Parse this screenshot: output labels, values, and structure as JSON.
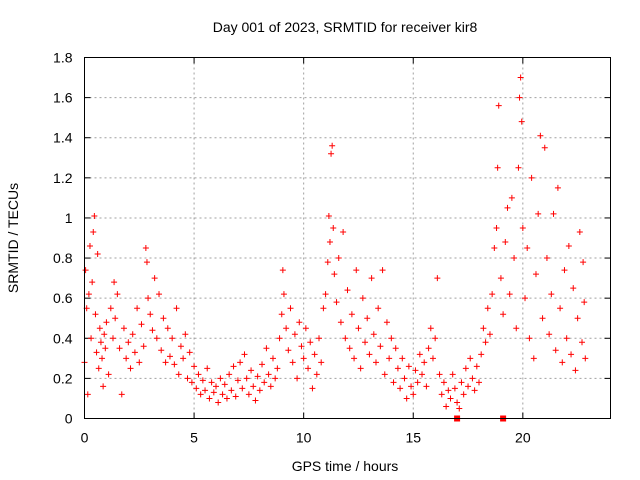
{
  "chart_data": {
    "type": "scatter",
    "title": "Day 001 of 2023, SRMTID for receiver kir8",
    "xlabel": "GPS time / hours",
    "ylabel": "SRMTID / TECUs",
    "xlim": [
      0,
      24
    ],
    "ylim": [
      0,
      1.8
    ],
    "xticks": [
      0,
      5,
      10,
      15,
      20
    ],
    "yticks": [
      0,
      0.2,
      0.4,
      0.6,
      0.8,
      1,
      1.2,
      1.4,
      1.6,
      1.8
    ],
    "xtick_labels": [
      "0",
      "5",
      "10",
      "15",
      "20"
    ],
    "ytick_labels": [
      "0",
      "0.2",
      "0.4",
      "0.6",
      "0.8",
      "1",
      "1.2",
      "1.4",
      "1.6",
      "1.8"
    ],
    "grid": true,
    "marker": "+",
    "color": "#ff0000",
    "series": [
      {
        "name": "SRMTID",
        "points": [
          [
            0.0,
            0.28
          ],
          [
            0.05,
            0.74
          ],
          [
            0.1,
            0.55
          ],
          [
            0.15,
            0.12
          ],
          [
            0.2,
            0.62
          ],
          [
            0.25,
            0.86
          ],
          [
            0.3,
            0.4
          ],
          [
            0.35,
            0.68
          ],
          [
            0.4,
            0.93
          ],
          [
            0.45,
            1.01
          ],
          [
            0.5,
            0.52
          ],
          [
            0.55,
            0.33
          ],
          [
            0.6,
            0.82
          ],
          [
            0.65,
            0.25
          ],
          [
            0.7,
            0.45
          ],
          [
            0.75,
            0.38
          ],
          [
            0.8,
            0.3
          ],
          [
            0.85,
            0.16
          ],
          [
            0.9,
            0.42
          ],
          [
            0.95,
            0.35
          ],
          [
            1.0,
            0.48
          ],
          [
            1.1,
            0.22
          ],
          [
            1.2,
            0.55
          ],
          [
            1.3,
            0.4
          ],
          [
            1.35,
            0.68
          ],
          [
            1.4,
            0.5
          ],
          [
            1.5,
            0.62
          ],
          [
            1.6,
            0.35
          ],
          [
            1.7,
            0.12
          ],
          [
            1.8,
            0.45
          ],
          [
            1.9,
            0.3
          ],
          [
            2.0,
            0.38
          ],
          [
            2.1,
            0.25
          ],
          [
            2.2,
            0.42
          ],
          [
            2.3,
            0.33
          ],
          [
            2.4,
            0.55
          ],
          [
            2.5,
            0.28
          ],
          [
            2.6,
            0.47
          ],
          [
            2.7,
            0.36
          ],
          [
            2.8,
            0.85
          ],
          [
            2.85,
            0.78
          ],
          [
            2.9,
            0.6
          ],
          [
            3.0,
            0.52
          ],
          [
            3.1,
            0.44
          ],
          [
            3.2,
            0.7
          ],
          [
            3.3,
            0.4
          ],
          [
            3.4,
            0.62
          ],
          [
            3.5,
            0.34
          ],
          [
            3.6,
            0.5
          ],
          [
            3.7,
            0.28
          ],
          [
            3.8,
            0.45
          ],
          [
            3.9,
            0.31
          ],
          [
            4.0,
            0.4
          ],
          [
            4.1,
            0.27
          ],
          [
            4.2,
            0.55
          ],
          [
            4.3,
            0.22
          ],
          [
            4.4,
            0.36
          ],
          [
            4.5,
            0.3
          ],
          [
            4.6,
            0.42
          ],
          [
            4.7,
            0.2
          ],
          [
            4.8,
            0.33
          ],
          [
            4.9,
            0.18
          ],
          [
            5.0,
            0.26
          ],
          [
            5.1,
            0.15
          ],
          [
            5.2,
            0.22
          ],
          [
            5.3,
            0.12
          ],
          [
            5.4,
            0.19
          ],
          [
            5.5,
            0.14
          ],
          [
            5.6,
            0.25
          ],
          [
            5.7,
            0.1
          ],
          [
            5.8,
            0.18
          ],
          [
            5.9,
            0.13
          ],
          [
            6.0,
            0.16
          ],
          [
            6.1,
            0.08
          ],
          [
            6.2,
            0.2
          ],
          [
            6.3,
            0.12
          ],
          [
            6.4,
            0.17
          ],
          [
            6.5,
            0.1
          ],
          [
            6.6,
            0.22
          ],
          [
            6.7,
            0.14
          ],
          [
            6.8,
            0.26
          ],
          [
            6.9,
            0.11
          ],
          [
            7.0,
            0.19
          ],
          [
            7.1,
            0.28
          ],
          [
            7.2,
            0.15
          ],
          [
            7.3,
            0.32
          ],
          [
            7.4,
            0.2
          ],
          [
            7.5,
            0.12
          ],
          [
            7.6,
            0.24
          ],
          [
            7.7,
            0.16
          ],
          [
            7.8,
            0.09
          ],
          [
            7.9,
            0.21
          ],
          [
            8.0,
            0.14
          ],
          [
            8.1,
            0.27
          ],
          [
            8.2,
            0.18
          ],
          [
            8.3,
            0.35
          ],
          [
            8.4,
            0.22
          ],
          [
            8.5,
            0.16
          ],
          [
            8.6,
            0.3
          ],
          [
            8.7,
            0.2
          ],
          [
            8.8,
            0.25
          ],
          [
            8.9,
            0.4
          ],
          [
            9.0,
            0.52
          ],
          [
            9.05,
            0.74
          ],
          [
            9.1,
            0.62
          ],
          [
            9.2,
            0.45
          ],
          [
            9.3,
            0.34
          ],
          [
            9.4,
            0.55
          ],
          [
            9.5,
            0.28
          ],
          [
            9.6,
            0.42
          ],
          [
            9.7,
            0.2
          ],
          [
            9.8,
            0.48
          ],
          [
            9.9,
            0.36
          ],
          [
            10.0,
            0.3
          ],
          [
            10.1,
            0.45
          ],
          [
            10.2,
            0.25
          ],
          [
            10.3,
            0.38
          ],
          [
            10.4,
            0.15
          ],
          [
            10.5,
            0.32
          ],
          [
            10.6,
            0.22
          ],
          [
            10.7,
            0.4
          ],
          [
            10.8,
            0.28
          ],
          [
            10.9,
            0.55
          ],
          [
            11.0,
            0.62
          ],
          [
            11.1,
            0.78
          ],
          [
            11.15,
            1.01
          ],
          [
            11.2,
            0.88
          ],
          [
            11.25,
            1.32
          ],
          [
            11.3,
            1.36
          ],
          [
            11.35,
            0.95
          ],
          [
            11.4,
            0.72
          ],
          [
            11.5,
            0.58
          ],
          [
            11.6,
            0.8
          ],
          [
            11.7,
            0.48
          ],
          [
            11.8,
            0.93
          ],
          [
            11.9,
            0.4
          ],
          [
            12.0,
            0.64
          ],
          [
            12.1,
            0.35
          ],
          [
            12.2,
            0.52
          ],
          [
            12.3,
            0.3
          ],
          [
            12.4,
            0.74
          ],
          [
            12.5,
            0.45
          ],
          [
            12.6,
            0.25
          ],
          [
            12.7,
            0.6
          ],
          [
            12.8,
            0.38
          ],
          [
            12.9,
            0.5
          ],
          [
            13.0,
            0.32
          ],
          [
            13.1,
            0.7
          ],
          [
            13.2,
            0.42
          ],
          [
            13.3,
            0.28
          ],
          [
            13.4,
            0.55
          ],
          [
            13.5,
            0.36
          ],
          [
            13.6,
            0.74
          ],
          [
            13.7,
            0.22
          ],
          [
            13.8,
            0.48
          ],
          [
            13.9,
            0.3
          ],
          [
            14.0,
            0.4
          ],
          [
            14.1,
            0.18
          ],
          [
            14.2,
            0.35
          ],
          [
            14.3,
            0.25
          ],
          [
            14.4,
            0.15
          ],
          [
            14.5,
            0.3
          ],
          [
            14.6,
            0.2
          ],
          [
            14.7,
            0.1
          ],
          [
            14.8,
            0.26
          ],
          [
            14.9,
            0.16
          ],
          [
            15.0,
            0.12
          ],
          [
            15.1,
            0.24
          ],
          [
            15.2,
            0.18
          ],
          [
            15.3,
            0.32
          ],
          [
            15.4,
            0.22
          ],
          [
            15.5,
            0.28
          ],
          [
            15.6,
            0.16
          ],
          [
            15.7,
            0.35
          ],
          [
            15.8,
            0.45
          ],
          [
            15.9,
            0.3
          ],
          [
            16.0,
            0.4
          ],
          [
            16.1,
            0.7
          ],
          [
            16.2,
            0.22
          ],
          [
            16.3,
            0.12
          ],
          [
            16.4,
            0.18
          ],
          [
            16.5,
            0.06
          ],
          [
            16.6,
            0.14
          ],
          [
            16.7,
            0.1
          ],
          [
            16.8,
            0.22
          ],
          [
            16.9,
            0.15
          ],
          [
            17.0,
            0.08
          ],
          [
            17.1,
            0.05
          ],
          [
            17.2,
            0.18
          ],
          [
            17.3,
            0.12
          ],
          [
            17.4,
            0.25
          ],
          [
            17.5,
            0.16
          ],
          [
            17.6,
            0.3
          ],
          [
            17.7,
            0.2
          ],
          [
            17.8,
            0.14
          ],
          [
            17.9,
            0.26
          ],
          [
            18.0,
            0.18
          ],
          [
            18.1,
            0.32
          ],
          [
            18.2,
            0.45
          ],
          [
            18.3,
            0.38
          ],
          [
            18.4,
            0.55
          ],
          [
            18.5,
            0.42
          ],
          [
            18.6,
            0.62
          ],
          [
            18.7,
            0.85
          ],
          [
            18.8,
            0.95
          ],
          [
            18.85,
            1.25
          ],
          [
            18.9,
            1.56
          ],
          [
            19.0,
            0.7
          ],
          [
            19.1,
            0.52
          ],
          [
            19.2,
            0.88
          ],
          [
            19.3,
            1.05
          ],
          [
            19.4,
            0.62
          ],
          [
            19.5,
            1.1
          ],
          [
            19.6,
            0.8
          ],
          [
            19.7,
            0.45
          ],
          [
            19.8,
            1.25
          ],
          [
            19.85,
            1.6
          ],
          [
            19.9,
            1.7
          ],
          [
            19.95,
            1.48
          ],
          [
            20.0,
            0.95
          ],
          [
            20.1,
            0.6
          ],
          [
            20.2,
            0.85
          ],
          [
            20.3,
            0.4
          ],
          [
            20.4,
            1.2
          ],
          [
            20.5,
            0.3
          ],
          [
            20.6,
            0.72
          ],
          [
            20.7,
            1.02
          ],
          [
            20.8,
            1.41
          ],
          [
            20.9,
            0.5
          ],
          [
            21.0,
            1.35
          ],
          [
            21.1,
            0.8
          ],
          [
            21.2,
            0.42
          ],
          [
            21.3,
            0.62
          ],
          [
            21.4,
            1.02
          ],
          [
            21.5,
            0.34
          ],
          [
            21.6,
            1.15
          ],
          [
            21.7,
            0.55
          ],
          [
            21.8,
            0.28
          ],
          [
            21.9,
            0.74
          ],
          [
            22.0,
            0.4
          ],
          [
            22.1,
            0.86
          ],
          [
            22.2,
            0.32
          ],
          [
            22.3,
            0.65
          ],
          [
            22.4,
            0.24
          ],
          [
            22.5,
            0.5
          ],
          [
            22.6,
            0.93
          ],
          [
            22.7,
            0.38
          ],
          [
            22.75,
            0.78
          ],
          [
            22.8,
            0.58
          ],
          [
            22.85,
            0.3
          ]
        ]
      }
    ],
    "flagged_points": [
      [
        17.0,
        0.0
      ],
      [
        19.1,
        0.0
      ]
    ]
  }
}
